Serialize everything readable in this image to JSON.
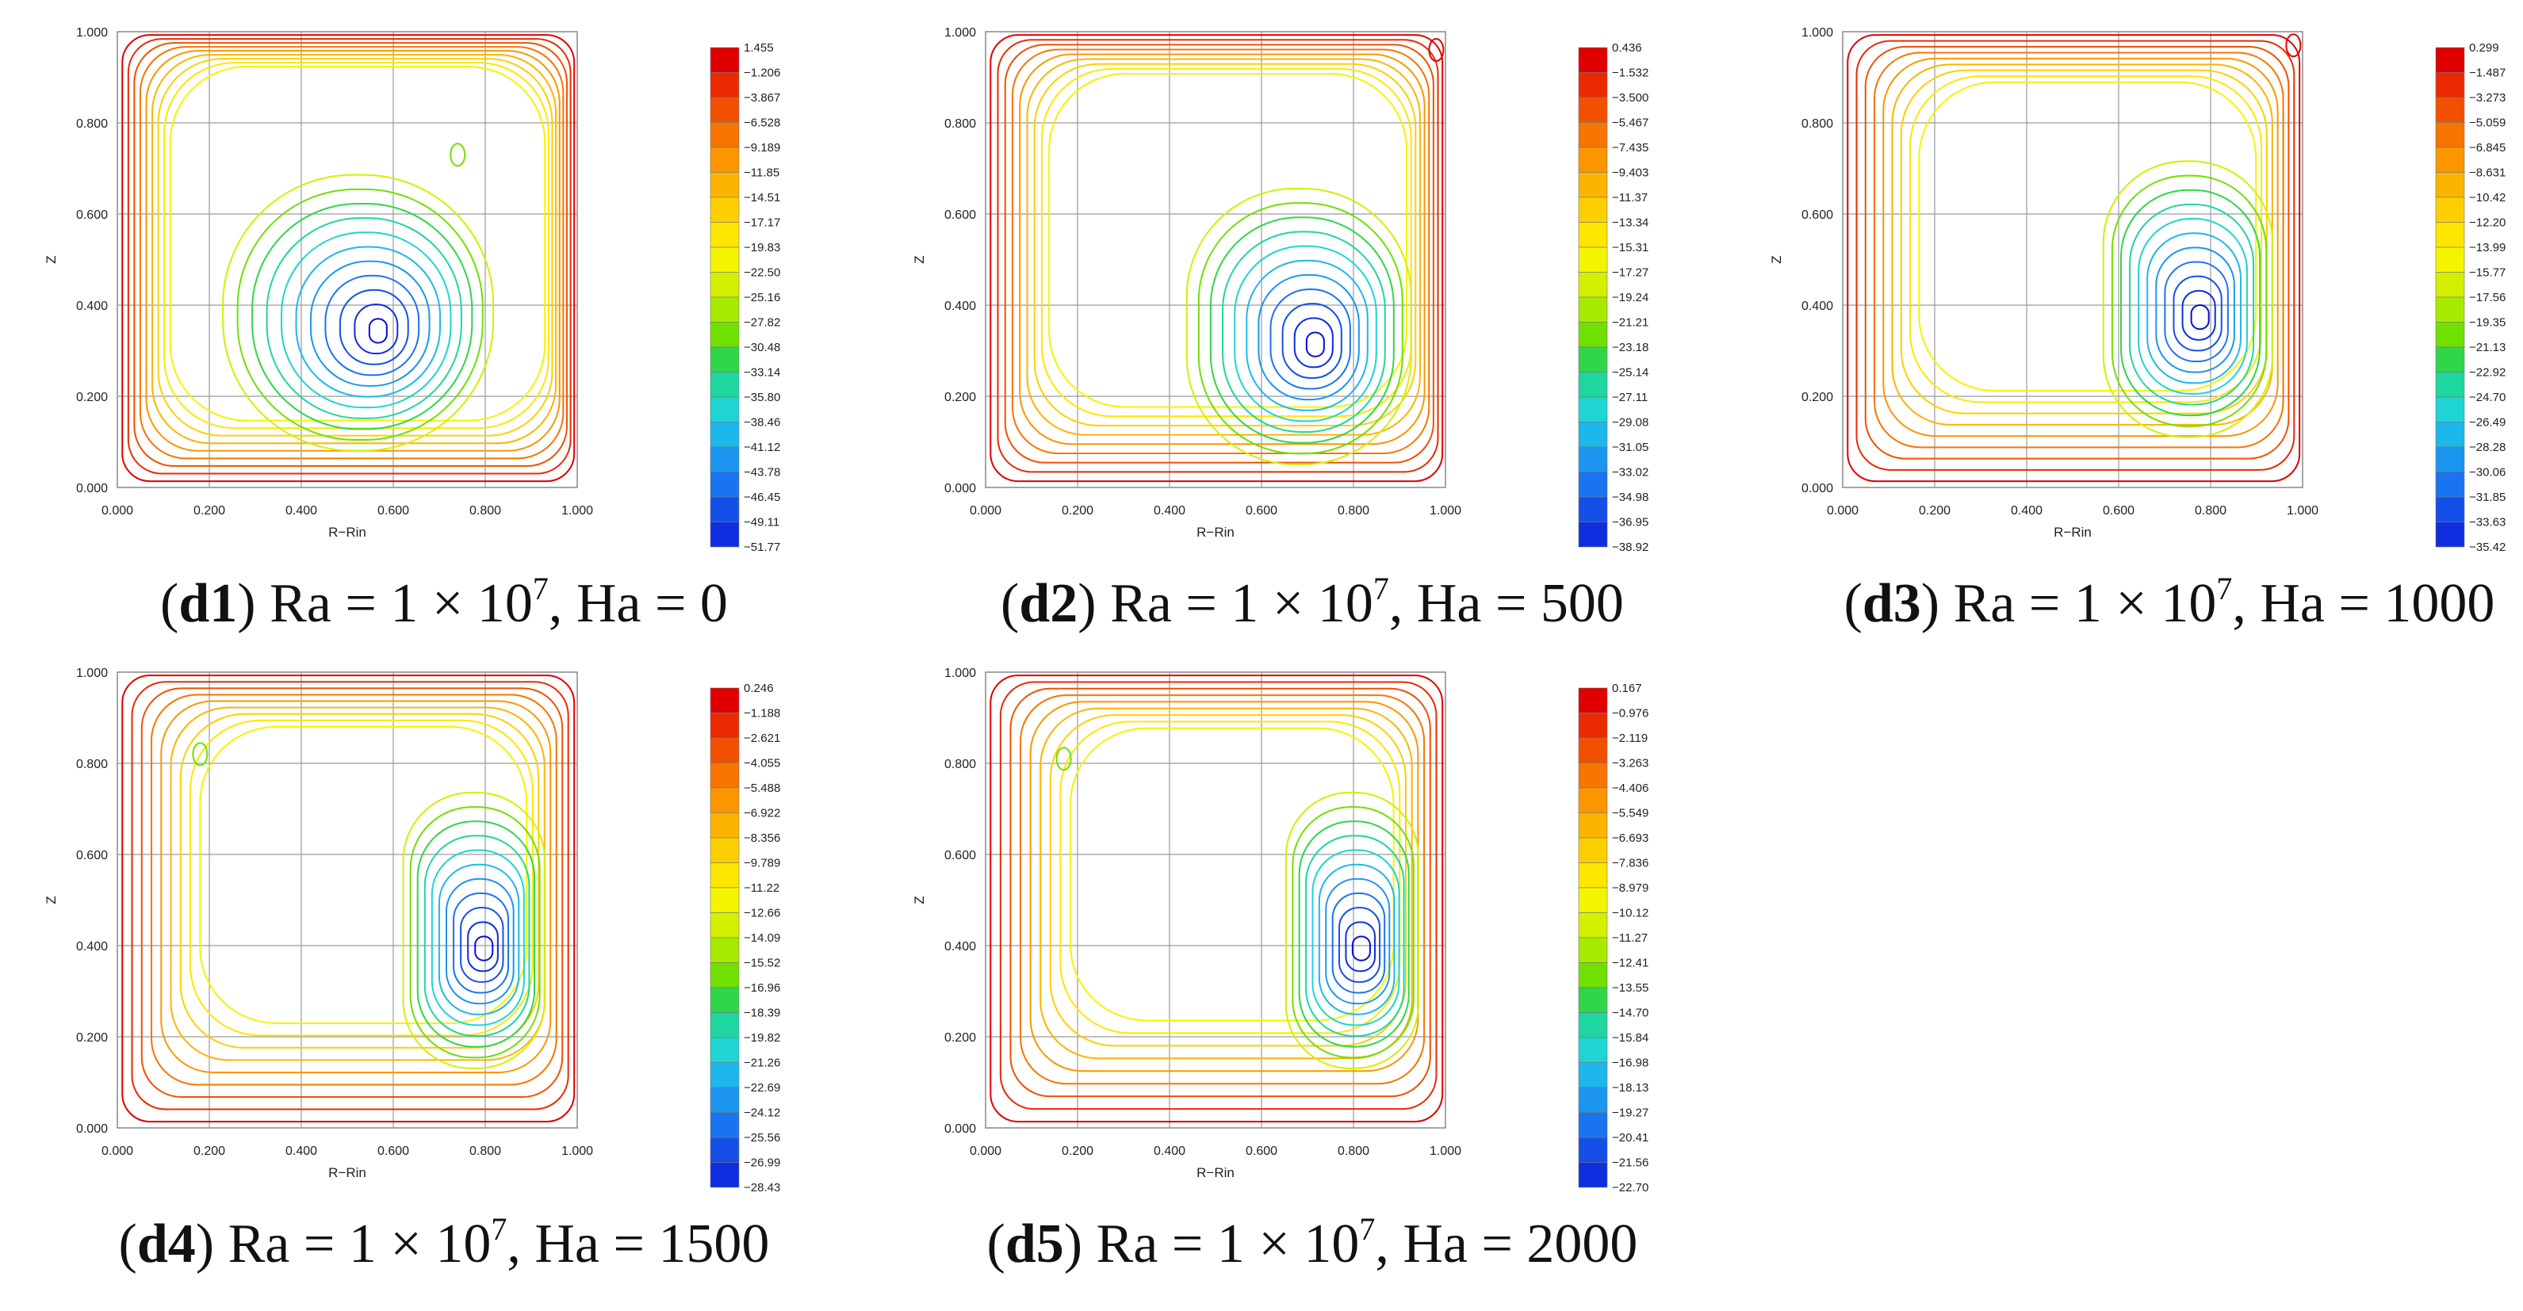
{
  "chart_data": [
    {
      "type": "contour",
      "panel_label": "d1",
      "caption_rest": ") Ra = 1 × 10",
      "caption_exp": "7",
      "caption_tail": ", Ha = 0",
      "xlabel": "R−Rin",
      "ylabel": "Z",
      "xlim": [
        0,
        1
      ],
      "ylim": [
        0,
        1
      ],
      "xticks": [
        "0.000",
        "0.200",
        "0.400",
        "0.600",
        "0.800",
        "1.000"
      ],
      "yticks": [
        "0.000",
        "0.200",
        "0.400",
        "0.600",
        "0.800",
        "1.000"
      ],
      "colorbar_levels": [
        "1.455",
        "−1.206",
        "−3.867",
        "−6.528",
        "−9.189",
        "−11.85",
        "−14.51",
        "−17.17",
        "−19.83",
        "−22.50",
        "−25.16",
        "−27.82",
        "−30.48",
        "−33.14",
        "−35.80",
        "−38.46",
        "−41.12",
        "−43.78",
        "−46.45",
        "−49.11",
        "−51.77"
      ],
      "vortex_center": [
        0.57,
        0.34
      ],
      "secondary_eddy": [
        0.74,
        0.73
      ],
      "vortex_spread": 0.55,
      "grid": true
    },
    {
      "type": "contour",
      "panel_label": "d2",
      "caption_rest": ") Ra = 1 × 10",
      "caption_exp": "7",
      "caption_tail": ", Ha = 500",
      "xlabel": "R−Rin",
      "ylabel": "Z",
      "xlim": [
        0,
        1
      ],
      "ylim": [
        0,
        1
      ],
      "xticks": [
        "0.000",
        "0.200",
        "0.400",
        "0.600",
        "0.800",
        "1.000"
      ],
      "yticks": [
        "0.000",
        "0.200",
        "0.400",
        "0.600",
        "0.800",
        "1.000"
      ],
      "colorbar_levels": [
        "0.436",
        "−1.532",
        "−3.500",
        "−5.467",
        "−7.435",
        "−9.403",
        "−11.37",
        "−13.34",
        "−15.31",
        "−17.27",
        "−19.24",
        "−21.21",
        "−23.18",
        "−25.14",
        "−27.11",
        "−29.08",
        "−31.05",
        "−33.02",
        "−34.98",
        "−36.95",
        "−38.92"
      ],
      "vortex_center": [
        0.72,
        0.31
      ],
      "secondary_eddy": [
        0.98,
        0.96
      ],
      "vortex_spread": 0.45,
      "grid": true
    },
    {
      "type": "contour",
      "panel_label": "d3",
      "caption_rest": ") Ra = 1 × 10",
      "caption_exp": "7",
      "caption_tail": ", Ha = 1000",
      "xlabel": "R−Rin",
      "ylabel": "Z",
      "xlim": [
        0,
        1
      ],
      "ylim": [
        0,
        1
      ],
      "xticks": [
        "0.000",
        "0.200",
        "0.400",
        "0.600",
        "0.800",
        "1.000"
      ],
      "yticks": [
        "0.000",
        "0.200",
        "0.400",
        "0.600",
        "0.800",
        "1.000"
      ],
      "colorbar_levels": [
        "0.299",
        "−1.487",
        "−3.273",
        "−5.059",
        "−6.845",
        "−8.631",
        "−10.42",
        "−12.20",
        "−13.99",
        "−15.77",
        "−17.56",
        "−19.35",
        "−21.13",
        "−22.92",
        "−24.70",
        "−26.49",
        "−28.28",
        "−30.06",
        "−31.85",
        "−33.63",
        "−35.42"
      ],
      "vortex_center": [
        0.78,
        0.37
      ],
      "secondary_eddy": [
        0.98,
        0.97
      ],
      "vortex_spread": 0.33,
      "grid": true
    },
    {
      "type": "contour",
      "panel_label": "d4",
      "caption_rest": ") Ra = 1 × 10",
      "caption_exp": "7",
      "caption_tail": ", Ha = 1500",
      "xlabel": "R−Rin",
      "ylabel": "Z",
      "xlim": [
        0,
        1
      ],
      "ylim": [
        0,
        1
      ],
      "xticks": [
        "0.000",
        "0.200",
        "0.400",
        "0.600",
        "0.800",
        "1.000"
      ],
      "yticks": [
        "0.000",
        "0.200",
        "0.400",
        "0.600",
        "0.800",
        "1.000"
      ],
      "colorbar_levels": [
        "0.246",
        "−1.188",
        "−2.621",
        "−4.055",
        "−5.488",
        "−6.922",
        "−8.356",
        "−9.789",
        "−11.22",
        "−12.66",
        "−14.09",
        "−15.52",
        "−16.96",
        "−18.39",
        "−19.82",
        "−21.26",
        "−22.69",
        "−24.12",
        "−25.56",
        "−26.99",
        "−28.43"
      ],
      "vortex_center": [
        0.8,
        0.39
      ],
      "secondary_eddy": [
        0.18,
        0.82
      ],
      "vortex_spread": 0.27,
      "grid": true
    },
    {
      "type": "contour",
      "panel_label": "d5",
      "caption_rest": ") Ra = 1 × 10",
      "caption_exp": "7",
      "caption_tail": ", Ha = 2000",
      "xlabel": "R−Rin",
      "ylabel": "Z",
      "xlim": [
        0,
        1
      ],
      "ylim": [
        0,
        1
      ],
      "xticks": [
        "0.000",
        "0.200",
        "0.400",
        "0.600",
        "0.800",
        "1.000"
      ],
      "yticks": [
        "0.000",
        "0.200",
        "0.400",
        "0.600",
        "0.800",
        "1.000"
      ],
      "colorbar_levels": [
        "0.167",
        "−0.976",
        "−2.119",
        "−3.263",
        "−4.406",
        "−5.549",
        "−6.693",
        "−7.836",
        "−8.979",
        "−10.12",
        "−11.27",
        "−12.41",
        "−13.55",
        "−14.70",
        "−15.84",
        "−16.98",
        "−18.13",
        "−19.27",
        "−20.41",
        "−21.56",
        "−22.70"
      ],
      "vortex_center": [
        0.82,
        0.39
      ],
      "secondary_eddy": [
        0.17,
        0.81
      ],
      "vortex_spread": 0.25,
      "grid": true
    }
  ],
  "colorbar_colors": [
    "#e00000",
    "#ea2a00",
    "#f25000",
    "#f87400",
    "#fb9600",
    "#fdb400",
    "#fecf00",
    "#ffe600",
    "#f4f400",
    "#d2f000",
    "#a8ea00",
    "#70e000",
    "#2fd64a",
    "#1ed6a0",
    "#1ed4d4",
    "#1cb8ec",
    "#1a96f0",
    "#1874f0",
    "#1450e8",
    "#0e2ee0",
    "#0a0ad8"
  ]
}
